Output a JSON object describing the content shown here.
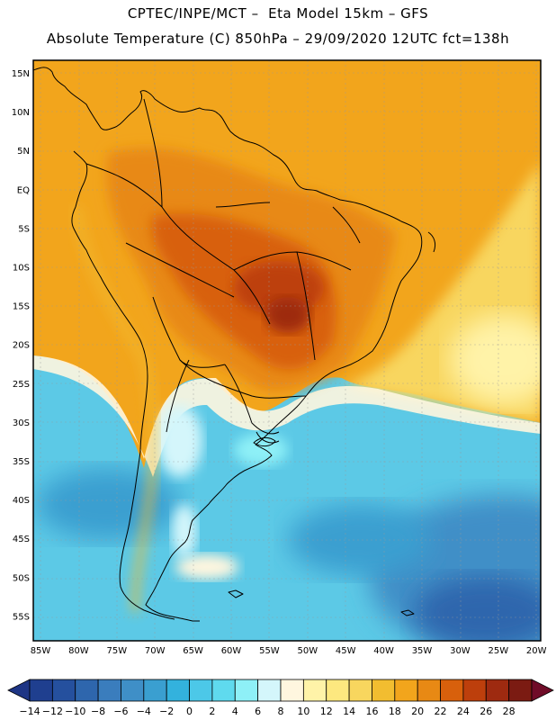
{
  "header": {
    "title_line1": "CPTEC/INPE/MCT –  Eta Model 15km – GFS",
    "title_line2": "Absolute Temperature (C) 850hPa – 29/09/2020 12UTC fct=138h"
  },
  "map": {
    "lat_labels": [
      "15N",
      "10N",
      "5N",
      "EQ",
      "5S",
      "10S",
      "15S",
      "20S",
      "25S",
      "30S",
      "35S",
      "40S",
      "45S",
      "50S",
      "55S"
    ],
    "lon_labels": [
      "85W",
      "80W",
      "75W",
      "70W",
      "65W",
      "60W",
      "55W",
      "50W",
      "45W",
      "40W",
      "35W",
      "30W",
      "25W",
      "20W"
    ]
  },
  "colorbar": {
    "labels": [
      "−14",
      "−12",
      "−10",
      "−8",
      "−6",
      "−4",
      "−2",
      "0",
      "2",
      "4",
      "6",
      "8",
      "10",
      "12",
      "14",
      "16",
      "18",
      "20",
      "22",
      "24",
      "26",
      "28"
    ],
    "colors": [
      "#1f3f8f",
      "#25509e",
      "#2e66ad",
      "#3a7dbd",
      "#3f8fc7",
      "#3a9fd0",
      "#33b2dd",
      "#4cc8e8",
      "#5fdaee",
      "#8ef0f7",
      "#d4f6fb",
      "#fff6df",
      "#fff3a8",
      "#fde87f",
      "#f8d65e",
      "#f2bd30",
      "#f2a51c",
      "#e88914",
      "#d8600c",
      "#bd3f0c",
      "#9e2a10",
      "#7b1b12"
    ],
    "min_color": "#1e3585",
    "max_color": "#700c28"
  }
}
